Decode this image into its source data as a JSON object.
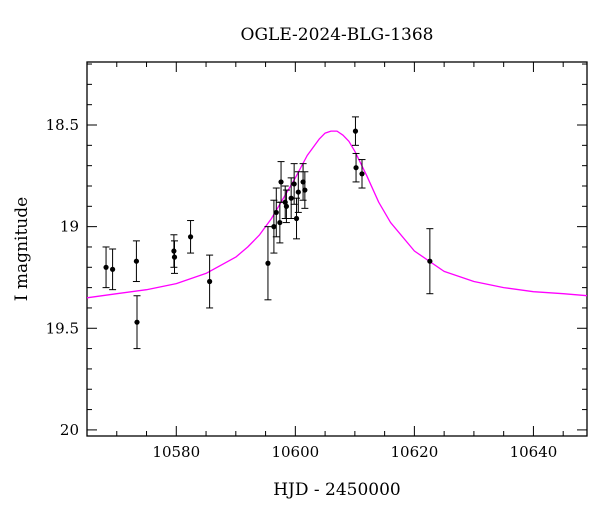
{
  "chart_data": {
    "type": "scatter",
    "title": "OGLE-2024-BLG-1368",
    "xlabel": "HJD - 2450000",
    "ylabel": "I magnitude",
    "xlim": [
      10565,
      10649
    ],
    "ylim": [
      20.03,
      18.19
    ],
    "y_inverted": true,
    "x_ticks": [
      10580,
      10600,
      10620,
      10640
    ],
    "x_tick_labels": [
      "10580",
      "10600",
      "10620",
      "10640"
    ],
    "y_ticks": [
      18.5,
      19,
      19.5,
      20
    ],
    "y_tick_labels": [
      "18.5",
      "19",
      "19.5",
      "20"
    ],
    "grid": false,
    "legend": "none",
    "colors": {
      "data": "#000000",
      "model": "#ff00ff"
    },
    "series": [
      {
        "kind": "points_with_error_bars",
        "x": [
          10568.2,
          10569.3,
          10573.3,
          10573.4,
          10579.6,
          10579.7,
          10582.4,
          10585.6,
          10595.4,
          10596.4,
          10596.8,
          10597.4,
          10597.6,
          10598.3,
          10598.5,
          10599.3,
          10599.8,
          10600.2,
          10600.5,
          10601.3,
          10601.6,
          10610.1,
          10610.2,
          10611.2,
          10622.6
        ],
        "y": [
          19.2,
          19.21,
          19.17,
          19.47,
          19.12,
          19.15,
          19.05,
          19.27,
          19.18,
          19.0,
          18.93,
          18.98,
          18.78,
          18.88,
          18.9,
          18.86,
          18.79,
          18.96,
          18.83,
          18.78,
          18.82,
          18.53,
          18.71,
          18.74,
          19.17
        ],
        "yerr": [
          0.1,
          0.1,
          0.1,
          0.13,
          0.08,
          0.08,
          0.08,
          0.13,
          0.18,
          0.13,
          0.12,
          0.1,
          0.1,
          0.08,
          0.08,
          0.1,
          0.1,
          0.1,
          0.1,
          0.09,
          0.09,
          0.07,
          0.07,
          0.07,
          0.16
        ]
      },
      {
        "kind": "model_curve",
        "x": [
          10565,
          10570,
          10575,
          10580,
          10585,
          10590,
          10592,
          10594,
          10596,
          10598,
          10600,
          10602,
          10604,
          10605,
          10606,
          10607,
          10608,
          10609,
          10610,
          10612,
          10614,
          10616,
          10620,
          10625,
          10630,
          10635,
          10640,
          10645,
          10649
        ],
        "y": [
          19.35,
          19.33,
          19.31,
          19.28,
          19.23,
          19.15,
          19.1,
          19.04,
          18.96,
          18.86,
          18.76,
          18.65,
          18.57,
          18.54,
          18.53,
          18.53,
          18.55,
          18.58,
          18.63,
          18.75,
          18.88,
          18.98,
          19.12,
          19.22,
          19.27,
          19.3,
          19.32,
          19.33,
          19.34
        ]
      }
    ]
  }
}
